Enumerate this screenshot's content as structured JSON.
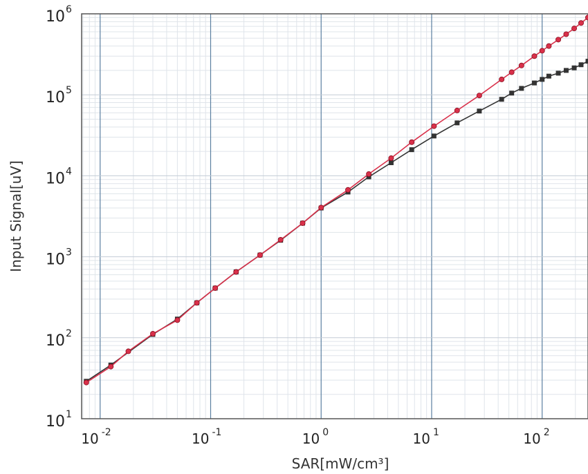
{
  "chart_data": {
    "type": "line",
    "xlabel": "SAR[mW/cm³]",
    "ylabel": "Input Signal[uV]",
    "x_scale": "log",
    "y_scale": "log",
    "xlim": [
      0.0068,
      260
    ],
    "ylim": [
      10,
      1000000
    ],
    "grid": true,
    "x_ticks": [
      {
        "value": 0.01,
        "base": "10",
        "exp": "-2"
      },
      {
        "value": 0.1,
        "base": "10",
        "exp": "-1"
      },
      {
        "value": 1,
        "base": "10",
        "exp": "0"
      },
      {
        "value": 10,
        "base": "10",
        "exp": "1"
      },
      {
        "value": 100,
        "base": "10",
        "exp": "2"
      }
    ],
    "y_ticks": [
      {
        "value": 10,
        "base": "10",
        "exp": "1"
      },
      {
        "value": 100,
        "base": "10",
        "exp": "2"
      },
      {
        "value": 1000,
        "base": "10",
        "exp": "3"
      },
      {
        "value": 10000,
        "base": "10",
        "exp": "4"
      },
      {
        "value": 100000,
        "base": "10",
        "exp": "5"
      },
      {
        "value": 1000000,
        "base": "10",
        "exp": "6"
      }
    ],
    "series": [
      {
        "color": "#333333",
        "marker": "square",
        "x": [
          0.0075,
          0.0125,
          0.03,
          0.05,
          0.075,
          0.11,
          0.17,
          0.28,
          0.43,
          0.68,
          1.0,
          1.75,
          2.7,
          4.3,
          6.6,
          10.5,
          17,
          27,
          43,
          53,
          65,
          85,
          100,
          115,
          140,
          165,
          195,
          225,
          260
        ],
        "y": [
          29,
          46,
          110,
          170,
          270,
          410,
          650,
          1050,
          1600,
          2600,
          4000,
          6300,
          9700,
          14500,
          21000,
          31000,
          45000,
          63000,
          88000,
          105000,
          120000,
          140000,
          155000,
          170000,
          185000,
          200000,
          215000,
          235000,
          260000
        ]
      },
      {
        "color": "#d9304a",
        "marker": "circle",
        "x": [
          0.0075,
          0.0125,
          0.018,
          0.03,
          0.05,
          0.075,
          0.11,
          0.17,
          0.28,
          0.43,
          0.68,
          1.0,
          1.75,
          2.7,
          4.3,
          6.6,
          10.5,
          17,
          27,
          43,
          53,
          65,
          85,
          100,
          115,
          140,
          165,
          195,
          225,
          260
        ],
        "y": [
          28,
          44,
          68,
          112,
          165,
          270,
          410,
          650,
          1050,
          1620,
          2600,
          4050,
          6700,
          10500,
          16500,
          26000,
          41000,
          64000,
          98000,
          155000,
          190000,
          230000,
          300000,
          350000,
          400000,
          480000,
          560000,
          660000,
          770000,
          900000
        ]
      }
    ]
  }
}
